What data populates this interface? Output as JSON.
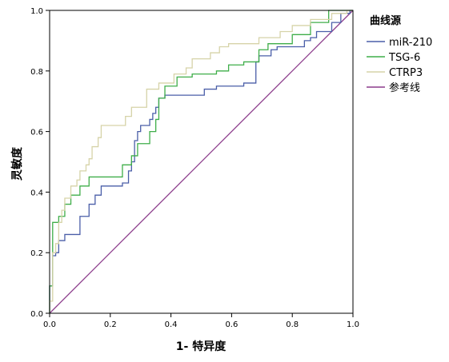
{
  "chart_data": {
    "type": "line",
    "xlabel": "1- 特异度",
    "ylabel": "灵敏度",
    "xlim": [
      0,
      1
    ],
    "ylim": [
      0,
      1
    ],
    "x_ticks": [
      "0.0",
      "0.2",
      "0.4",
      "0.6",
      "0.8",
      "1.0"
    ],
    "y_ticks": [
      "0.0",
      "0.2",
      "0.4",
      "0.6",
      "0.8",
      "1.0"
    ],
    "grid": false,
    "legend": {
      "title": "曲线源",
      "position": "right"
    },
    "series": [
      {
        "name": "miR-210",
        "color": "#4a5ea8",
        "points": [
          [
            0,
            0
          ],
          [
            0,
            0.09
          ],
          [
            0.01,
            0.09
          ],
          [
            0.01,
            0.19
          ],
          [
            0.02,
            0.19
          ],
          [
            0.02,
            0.2
          ],
          [
            0.03,
            0.2
          ],
          [
            0.03,
            0.24
          ],
          [
            0.05,
            0.24
          ],
          [
            0.05,
            0.26
          ],
          [
            0.1,
            0.26
          ],
          [
            0.1,
            0.32
          ],
          [
            0.13,
            0.32
          ],
          [
            0.13,
            0.36
          ],
          [
            0.15,
            0.36
          ],
          [
            0.15,
            0.39
          ],
          [
            0.17,
            0.39
          ],
          [
            0.17,
            0.42
          ],
          [
            0.24,
            0.42
          ],
          [
            0.24,
            0.43
          ],
          [
            0.26,
            0.43
          ],
          [
            0.26,
            0.47
          ],
          [
            0.27,
            0.47
          ],
          [
            0.27,
            0.5
          ],
          [
            0.28,
            0.5
          ],
          [
            0.28,
            0.57
          ],
          [
            0.29,
            0.57
          ],
          [
            0.29,
            0.6
          ],
          [
            0.3,
            0.6
          ],
          [
            0.3,
            0.62
          ],
          [
            0.33,
            0.62
          ],
          [
            0.33,
            0.64
          ],
          [
            0.34,
            0.64
          ],
          [
            0.34,
            0.66
          ],
          [
            0.35,
            0.66
          ],
          [
            0.35,
            0.68
          ],
          [
            0.36,
            0.68
          ],
          [
            0.36,
            0.71
          ],
          [
            0.38,
            0.71
          ],
          [
            0.38,
            0.72
          ],
          [
            0.51,
            0.72
          ],
          [
            0.51,
            0.74
          ],
          [
            0.55,
            0.74
          ],
          [
            0.55,
            0.75
          ],
          [
            0.64,
            0.75
          ],
          [
            0.64,
            0.76
          ],
          [
            0.68,
            0.76
          ],
          [
            0.68,
            0.83
          ],
          [
            0.69,
            0.83
          ],
          [
            0.69,
            0.85
          ],
          [
            0.73,
            0.85
          ],
          [
            0.73,
            0.87
          ],
          [
            0.75,
            0.87
          ],
          [
            0.75,
            0.88
          ],
          [
            0.84,
            0.88
          ],
          [
            0.84,
            0.9
          ],
          [
            0.86,
            0.9
          ],
          [
            0.86,
            0.91
          ],
          [
            0.88,
            0.91
          ],
          [
            0.88,
            0.93
          ],
          [
            0.93,
            0.93
          ],
          [
            0.93,
            0.96
          ],
          [
            0.96,
            0.96
          ],
          [
            0.96,
            0.99
          ],
          [
            0.99,
            0.99
          ],
          [
            0.99,
            1
          ],
          [
            1,
            1
          ]
        ]
      },
      {
        "name": "TSG-6",
        "color": "#3fae49",
        "points": [
          [
            0,
            0
          ],
          [
            0,
            0.09
          ],
          [
            0.01,
            0.09
          ],
          [
            0.01,
            0.3
          ],
          [
            0.03,
            0.3
          ],
          [
            0.03,
            0.32
          ],
          [
            0.05,
            0.32
          ],
          [
            0.05,
            0.36
          ],
          [
            0.07,
            0.36
          ],
          [
            0.07,
            0.39
          ],
          [
            0.1,
            0.39
          ],
          [
            0.1,
            0.42
          ],
          [
            0.13,
            0.42
          ],
          [
            0.13,
            0.45
          ],
          [
            0.24,
            0.45
          ],
          [
            0.24,
            0.49
          ],
          [
            0.27,
            0.49
          ],
          [
            0.27,
            0.52
          ],
          [
            0.29,
            0.52
          ],
          [
            0.29,
            0.56
          ],
          [
            0.33,
            0.56
          ],
          [
            0.33,
            0.6
          ],
          [
            0.35,
            0.6
          ],
          [
            0.35,
            0.64
          ],
          [
            0.36,
            0.64
          ],
          [
            0.36,
            0.71
          ],
          [
            0.38,
            0.71
          ],
          [
            0.38,
            0.75
          ],
          [
            0.42,
            0.75
          ],
          [
            0.42,
            0.78
          ],
          [
            0.47,
            0.78
          ],
          [
            0.47,
            0.79
          ],
          [
            0.55,
            0.79
          ],
          [
            0.55,
            0.8
          ],
          [
            0.59,
            0.8
          ],
          [
            0.59,
            0.82
          ],
          [
            0.64,
            0.82
          ],
          [
            0.64,
            0.83
          ],
          [
            0.69,
            0.83
          ],
          [
            0.69,
            0.87
          ],
          [
            0.72,
            0.87
          ],
          [
            0.72,
            0.89
          ],
          [
            0.8,
            0.89
          ],
          [
            0.8,
            0.92
          ],
          [
            0.86,
            0.92
          ],
          [
            0.86,
            0.96
          ],
          [
            0.92,
            0.96
          ],
          [
            0.92,
            1
          ],
          [
            1,
            1
          ]
        ]
      },
      {
        "name": "CTRP3",
        "color": "#d6d3a8",
        "points": [
          [
            0,
            0
          ],
          [
            0,
            0.04
          ],
          [
            0.01,
            0.04
          ],
          [
            0.01,
            0.2
          ],
          [
            0.02,
            0.2
          ],
          [
            0.02,
            0.23
          ],
          [
            0.03,
            0.23
          ],
          [
            0.03,
            0.3
          ],
          [
            0.04,
            0.3
          ],
          [
            0.04,
            0.34
          ],
          [
            0.05,
            0.34
          ],
          [
            0.05,
            0.38
          ],
          [
            0.07,
            0.38
          ],
          [
            0.07,
            0.42
          ],
          [
            0.09,
            0.42
          ],
          [
            0.09,
            0.44
          ],
          [
            0.1,
            0.44
          ],
          [
            0.1,
            0.47
          ],
          [
            0.12,
            0.47
          ],
          [
            0.12,
            0.49
          ],
          [
            0.13,
            0.49
          ],
          [
            0.13,
            0.51
          ],
          [
            0.14,
            0.51
          ],
          [
            0.14,
            0.55
          ],
          [
            0.16,
            0.55
          ],
          [
            0.16,
            0.58
          ],
          [
            0.17,
            0.58
          ],
          [
            0.17,
            0.62
          ],
          [
            0.25,
            0.62
          ],
          [
            0.25,
            0.65
          ],
          [
            0.27,
            0.65
          ],
          [
            0.27,
            0.68
          ],
          [
            0.32,
            0.68
          ],
          [
            0.32,
            0.74
          ],
          [
            0.36,
            0.74
          ],
          [
            0.36,
            0.76
          ],
          [
            0.41,
            0.76
          ],
          [
            0.41,
            0.79
          ],
          [
            0.45,
            0.79
          ],
          [
            0.45,
            0.81
          ],
          [
            0.47,
            0.81
          ],
          [
            0.47,
            0.84
          ],
          [
            0.53,
            0.84
          ],
          [
            0.53,
            0.86
          ],
          [
            0.56,
            0.86
          ],
          [
            0.56,
            0.88
          ],
          [
            0.59,
            0.88
          ],
          [
            0.59,
            0.89
          ],
          [
            0.69,
            0.89
          ],
          [
            0.69,
            0.91
          ],
          [
            0.76,
            0.91
          ],
          [
            0.76,
            0.93
          ],
          [
            0.8,
            0.93
          ],
          [
            0.8,
            0.95
          ],
          [
            0.86,
            0.95
          ],
          [
            0.86,
            0.97
          ],
          [
            0.93,
            0.97
          ],
          [
            0.93,
            0.99
          ],
          [
            0.98,
            0.99
          ],
          [
            0.98,
            1
          ],
          [
            1,
            1
          ]
        ]
      },
      {
        "name": "参考线",
        "color": "#8c3c8c",
        "points": [
          [
            0,
            0
          ],
          [
            1,
            1
          ]
        ]
      }
    ]
  }
}
